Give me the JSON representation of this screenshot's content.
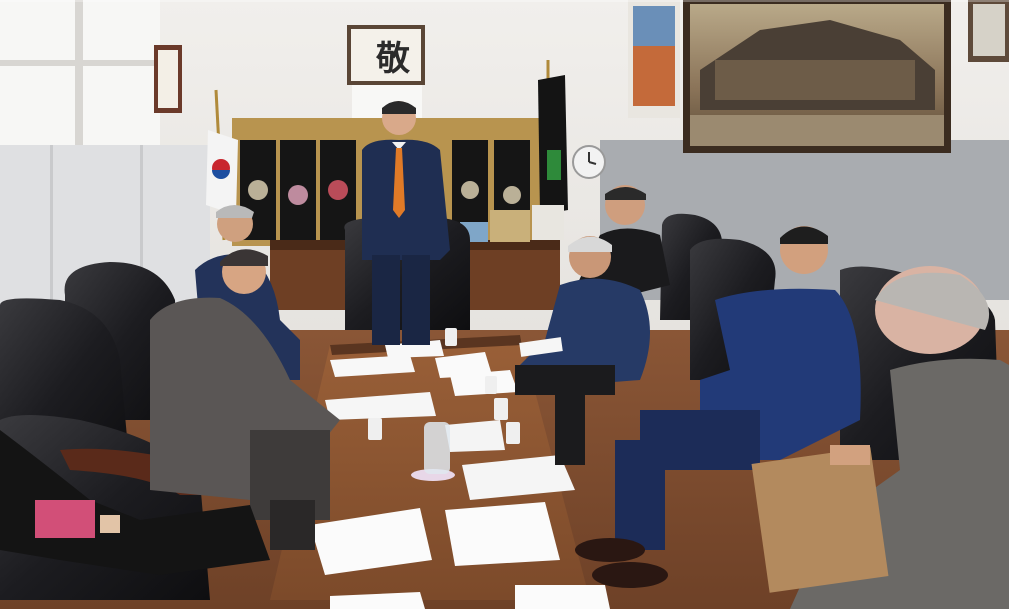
{
  "scene": {
    "calligraphy": {
      "character": "敬"
    }
  },
  "colors": {
    "wall": "#eceae6",
    "lower_wall": "#a4a7ab",
    "floor": "#7a4c2e",
    "table": "#8b5535",
    "chair_leather": "#1c1c1f",
    "suit_navy": "#1f2e52",
    "tie": "#e07a27"
  }
}
